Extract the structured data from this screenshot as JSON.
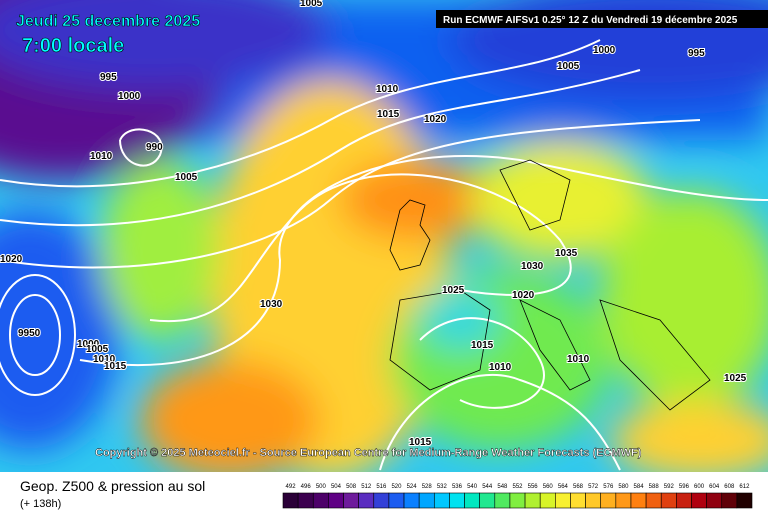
{
  "header": {
    "date": "Jeudi 25 decembre 2025",
    "time": "7:00 locale",
    "run": "Run ECMWF AIFSv1 0.25° 12 Z du Vendredi 19 décembre 2025"
  },
  "copyright": "Copyright © 2025 Meteociel.fr - Source European Centre for Medium-Range Weather Forecasts (ECMWF)",
  "isobar_labels": [
    "1005",
    "995",
    "1000",
    "990",
    "1010",
    "1005",
    "1010",
    "1015",
    "1020",
    "1000",
    "1005",
    "995",
    "1020",
    "9950",
    "1000",
    "1005",
    "1010",
    "1015",
    "1030",
    "1035",
    "1030",
    "1025",
    "1020",
    "1015",
    "1010",
    "1010",
    "1025",
    "1015"
  ],
  "footer": {
    "title": "Geop. Z500 & pression au sol",
    "lead": "(+ 138h)"
  },
  "legend": {
    "values": [
      492,
      496,
      500,
      504,
      508,
      512,
      516,
      520,
      524,
      528,
      532,
      536,
      540,
      544,
      548,
      552,
      556,
      560,
      564,
      568,
      572,
      576,
      580,
      584,
      588,
      592,
      596,
      600,
      604,
      608,
      612
    ],
    "colors": [
      "#2b0038",
      "#3c004f",
      "#4d0069",
      "#5f0084",
      "#6e1b9c",
      "#5a2cc0",
      "#3340d8",
      "#1c5cf0",
      "#0a80ff",
      "#00a6ff",
      "#00c8ff",
      "#00e2f0",
      "#00e8c0",
      "#20e890",
      "#50ea60",
      "#80ee40",
      "#b0f030",
      "#d8f428",
      "#f8f030",
      "#ffde30",
      "#ffc828",
      "#ffb020",
      "#ff9818",
      "#ff8010",
      "#f06010",
      "#e04010",
      "#c82010",
      "#b00010",
      "#900010",
      "#600008",
      "#200000"
    ]
  }
}
